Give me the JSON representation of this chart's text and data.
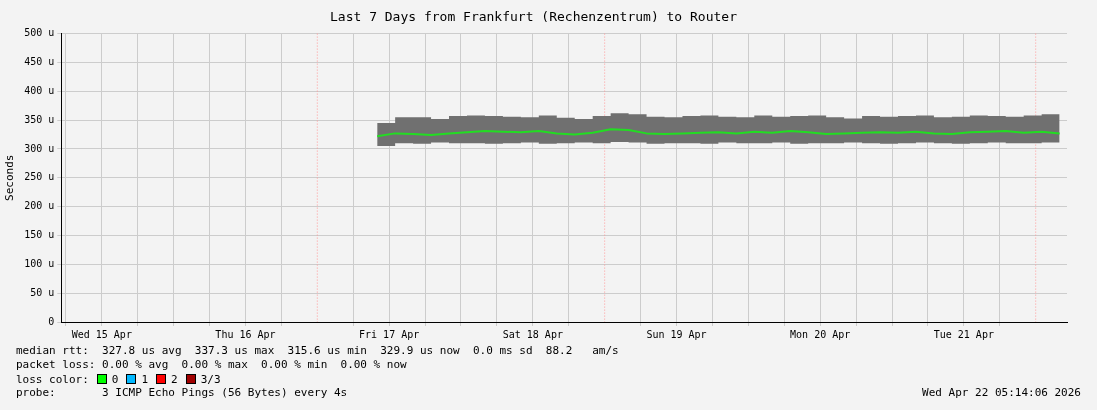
{
  "chart_data": {
    "type": "line",
    "title": "Last 7 Days from Frankfurt (Rechenzentrum) to Router",
    "ylabel": "Seconds",
    "x": [
      "2026-04-17T10:00",
      "2026-04-17T13:00",
      "2026-04-17T16:00",
      "2026-04-17T19:00",
      "2026-04-17T22:00",
      "2026-04-18T01:00",
      "2026-04-18T04:00",
      "2026-04-18T07:00",
      "2026-04-18T10:00",
      "2026-04-18T13:00",
      "2026-04-18T16:00",
      "2026-04-18T19:00",
      "2026-04-18T22:00",
      "2026-04-19T01:00",
      "2026-04-19T04:00",
      "2026-04-19T07:00",
      "2026-04-19T10:00",
      "2026-04-19T13:00",
      "2026-04-19T16:00",
      "2026-04-19T19:00",
      "2026-04-19T22:00",
      "2026-04-20T01:00",
      "2026-04-20T04:00",
      "2026-04-20T07:00",
      "2026-04-20T10:00",
      "2026-04-20T13:00",
      "2026-04-20T16:00",
      "2026-04-20T19:00",
      "2026-04-20T22:00",
      "2026-04-21T01:00",
      "2026-04-21T04:00",
      "2026-04-21T07:00",
      "2026-04-21T10:00",
      "2026-04-21T13:00",
      "2026-04-21T16:00",
      "2026-04-21T19:00",
      "2026-04-21T22:00",
      "2026-04-22T01:00",
      "2026-04-22T04:00"
    ],
    "series": [
      {
        "color": "#22dd22",
        "values": [
          322,
          327,
          326,
          324,
          327,
          329,
          331,
          330,
          329,
          331,
          327,
          325,
          328,
          334,
          333,
          327,
          326,
          327,
          328,
          329,
          327,
          330,
          328,
          331,
          329,
          326,
          327,
          328,
          329,
          328,
          330,
          327,
          326,
          329,
          330,
          331,
          328,
          330,
          327
        ],
        "lower": [
          305,
          310,
          309,
          311,
          310,
          310,
          309,
          310,
          311,
          309,
          310,
          311,
          310,
          312,
          311,
          309,
          310,
          310,
          309,
          311,
          310,
          310,
          311,
          309,
          310,
          310,
          311,
          310,
          309,
          310,
          311,
          310,
          309,
          310,
          311,
          310,
          310,
          311,
          312
        ],
        "upper": [
          345,
          355,
          355,
          352,
          357,
          358,
          357,
          356,
          355,
          358,
          354,
          352,
          357,
          362,
          360,
          356,
          355,
          357,
          358,
          356,
          355,
          358,
          356,
          357,
          358,
          355,
          353,
          357,
          356,
          357,
          358,
          355,
          356,
          358,
          357,
          356,
          358,
          360,
          356
        ]
      }
    ],
    "xlim": [
      "2026-04-15T05:14",
      "2026-04-22T05:14"
    ],
    "xticks": [
      {
        "value": "2026-04-15T06:00",
        "label": null
      },
      {
        "value": "2026-04-15T12:00",
        "label": "Wed 15 Apr"
      },
      {
        "value": "2026-04-15T18:00",
        "label": null
      },
      {
        "value": "2026-04-16T00:00",
        "label": null
      },
      {
        "value": "2026-04-16T06:00",
        "label": null
      },
      {
        "value": "2026-04-16T12:00",
        "label": "Thu 16 Apr"
      },
      {
        "value": "2026-04-16T18:00",
        "label": null
      },
      {
        "value": "2026-04-17T06:00",
        "label": null
      },
      {
        "value": "2026-04-17T12:00",
        "label": "Fri 17 Apr"
      },
      {
        "value": "2026-04-17T18:00",
        "label": null
      },
      {
        "value": "2026-04-18T00:00",
        "label": null
      },
      {
        "value": "2026-04-18T06:00",
        "label": null
      },
      {
        "value": "2026-04-18T12:00",
        "label": "Sat 18 Apr"
      },
      {
        "value": "2026-04-18T18:00",
        "label": null
      },
      {
        "value": "2026-04-19T06:00",
        "label": null
      },
      {
        "value": "2026-04-19T12:00",
        "label": "Sun 19 Apr"
      },
      {
        "value": "2026-04-19T18:00",
        "label": null
      },
      {
        "value": "2026-04-20T00:00",
        "label": null
      },
      {
        "value": "2026-04-20T06:00",
        "label": null
      },
      {
        "value": "2026-04-20T12:00",
        "label": "Mon 20 Apr"
      },
      {
        "value": "2026-04-20T18:00",
        "label": null
      },
      {
        "value": "2026-04-21T00:00",
        "label": null
      },
      {
        "value": "2026-04-21T06:00",
        "label": null
      },
      {
        "value": "2026-04-21T12:00",
        "label": "Tue 21 Apr"
      },
      {
        "value": "2026-04-21T18:00",
        "label": null
      }
    ],
    "ylim": [
      0,
      500
    ],
    "yticks": [
      0,
      {
        "value": 50,
        "label": "50 u"
      },
      {
        "value": 100,
        "label": "100 u"
      },
      {
        "value": 150,
        "label": "150 u"
      },
      {
        "value": 200,
        "label": "200 u"
      },
      {
        "value": 250,
        "label": "250 u"
      },
      {
        "value": 300,
        "label": "300 u"
      },
      {
        "value": 350,
        "label": "350 u"
      },
      {
        "value": 400,
        "label": "400 u"
      },
      {
        "value": 450,
        "label": "450 u"
      },
      {
        "value": 500,
        "label": "500 u"
      }
    ],
    "grid": true,
    "marker": "none",
    "ref_lines": [
      {
        "axis": "x",
        "value": "2026-04-17T00:00",
        "color": "#ff9999",
        "line_style": "dotted"
      },
      {
        "axis": "x",
        "value": "2026-04-19T00:00",
        "color": "#ff9999",
        "line_style": "dotted"
      },
      {
        "axis": "x",
        "value": "2026-04-22T00:00",
        "color": "#ff9999",
        "line_style": "dotted"
      }
    ],
    "annotations": [
      "median rtt:  327.8 us avg  337.3 us max  315.6 us min  329.9 us now  0.0 ms sd  88.2   am/s",
      "packet loss: 0.00 % avg  0.00 % max  0.00 % min  0.00 % now",
      "loss color:",
      "0",
      "1",
      "2",
      "3/3",
      "probe:       3 ICMP Echo Pings (56 Bytes) every 4s",
      "Wed Apr 22 05:14:06 2026"
    ]
  }
}
